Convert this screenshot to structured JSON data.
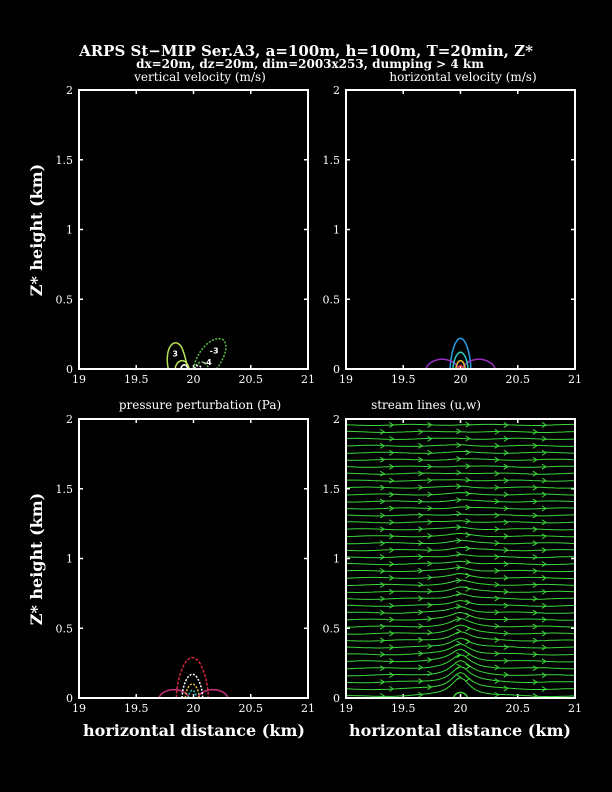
{
  "figure": {
    "title": "ARPS St−MIP Ser.A3, a=100m, h=100m, T=20min, Z*",
    "subtitle": "dx=20m, dz=20m, dim=2003x253, dumping > 4 km"
  },
  "chart_data": [
    {
      "type": "contour",
      "title": "vertical velocity (m/s)",
      "xlabel": "",
      "ylabel": "Z* height (km)",
      "xlim": [
        19,
        21
      ],
      "ylim": [
        0,
        2
      ],
      "xticks": [
        "19",
        "19.5",
        "20",
        "20.5",
        "21"
      ],
      "yticks": [
        "0",
        "0.5",
        "1",
        "1.5",
        "2"
      ],
      "contour_labels": [
        "3",
        "-3",
        "-4"
      ],
      "colors": [
        "#b8e35a",
        "#5fbf4a",
        "#ffffff"
      ]
    },
    {
      "type": "contour",
      "title": "horizontal velocity (m/s)",
      "xlabel": "",
      "ylabel": "",
      "xlim": [
        19,
        21
      ],
      "ylim": [
        0,
        2
      ],
      "xticks": [
        "19",
        "19.5",
        "20",
        "20.5",
        "21"
      ],
      "yticks": [
        "0",
        "0.5",
        "1",
        "1.5",
        "2"
      ],
      "colors": [
        "#2d9be0",
        "#9a2fc4",
        "#30c7c0",
        "#e2c23a",
        "#e23a3a"
      ]
    },
    {
      "type": "contour",
      "title": "pressure perturbation (Pa)",
      "xlabel": "horizontal distance (km)",
      "ylabel": "Z* height (km)",
      "xlim": [
        19,
        21
      ],
      "ylim": [
        0,
        2
      ],
      "xticks": [
        "19",
        "19.5",
        "20",
        "20.5",
        "21"
      ],
      "yticks": [
        "0",
        "0.5",
        "1",
        "1.5",
        "2"
      ],
      "colors": [
        "#d0253a",
        "#c2307a",
        "#ffffff",
        "#e2c23a",
        "#30c7c0"
      ]
    },
    {
      "type": "streamlines",
      "title": "stream lines (u,w)",
      "xlabel": "horizontal distance (km)",
      "ylabel": "",
      "xlim": [
        19,
        21
      ],
      "ylim": [
        0,
        2
      ],
      "xticks": [
        "19",
        "19.5",
        "20",
        "20.5",
        "21"
      ],
      "yticks": [
        "0",
        "0.5",
        "1",
        "1.5",
        "2"
      ],
      "line_color": "#3cd83c",
      "hill_half_width_km": 0.1,
      "hill_height_km": 0.1
    }
  ]
}
